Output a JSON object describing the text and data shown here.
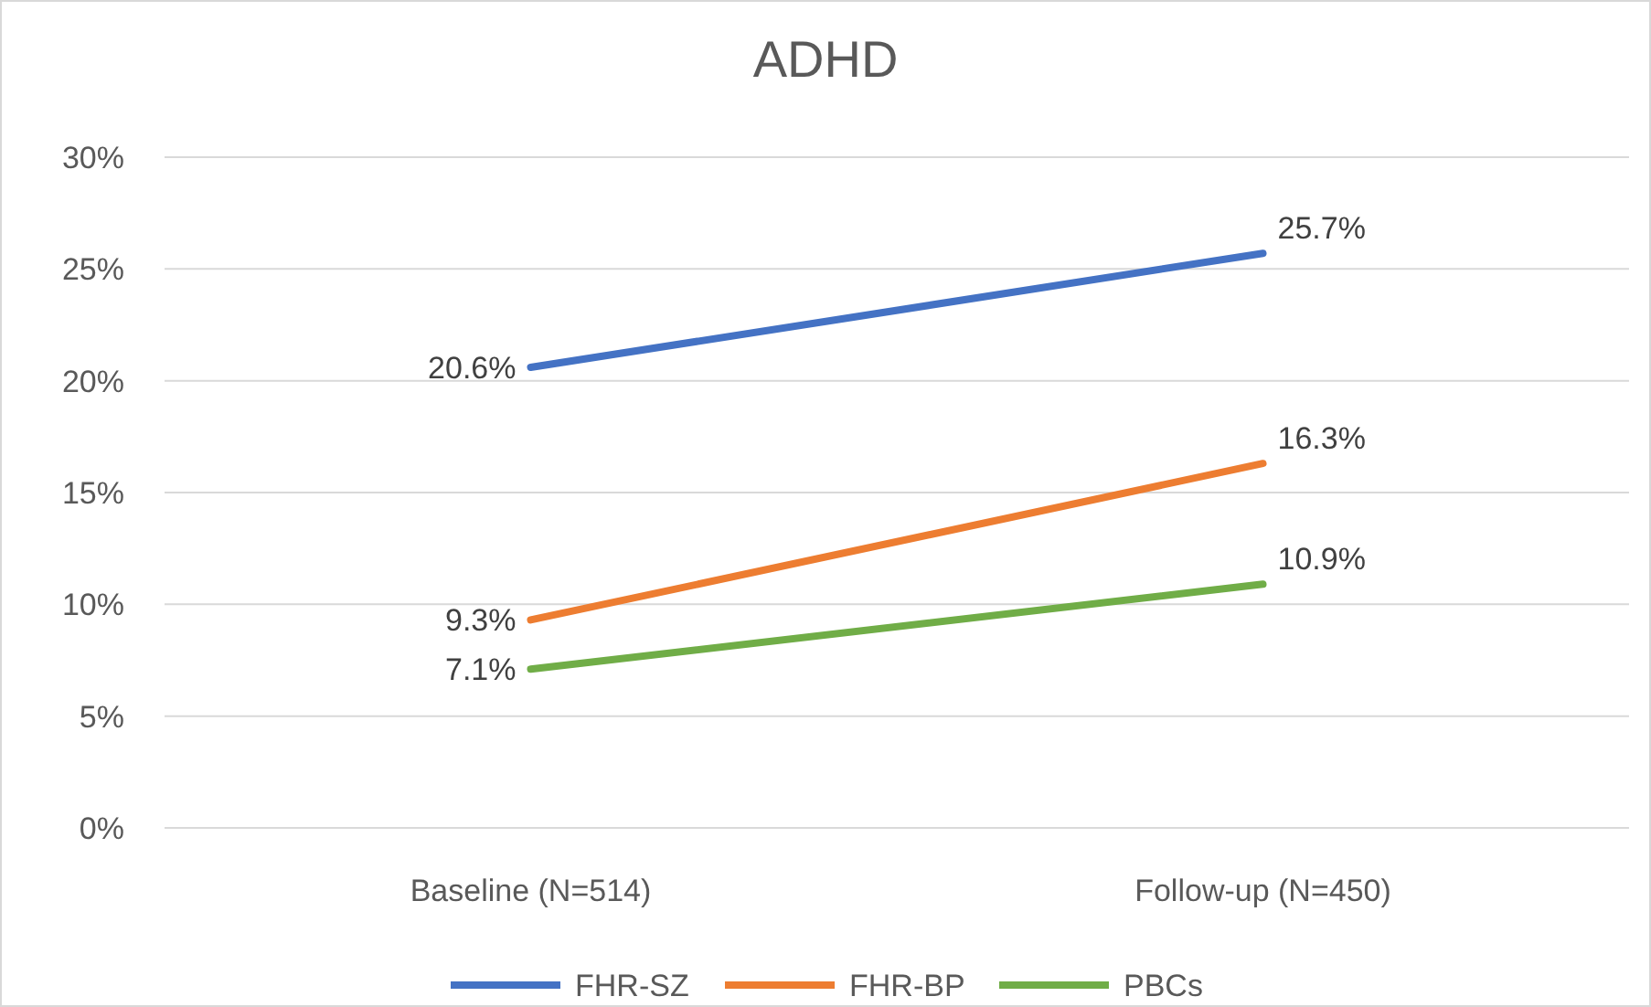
{
  "chart_data": {
    "type": "line",
    "title": "ADHD",
    "categories": [
      "Baseline (N=514)",
      "Follow-up (N=450)"
    ],
    "series": [
      {
        "name": "FHR-SZ",
        "color": "#4472c4",
        "values": [
          20.6,
          25.7
        ],
        "value_labels": [
          "20.6%",
          "25.7%"
        ]
      },
      {
        "name": "FHR-BP",
        "color": "#ed7d31",
        "values": [
          9.3,
          16.3
        ],
        "value_labels": [
          "9.3%",
          "16.3%"
        ]
      },
      {
        "name": "PBCs",
        "color": "#70ad47",
        "values": [
          7.1,
          10.9
        ],
        "value_labels": [
          "7.1%",
          "10.9%"
        ]
      }
    ],
    "ylim": [
      0,
      30
    ],
    "yticks": [
      {
        "value": 0,
        "label": "0%"
      },
      {
        "value": 5,
        "label": "5%"
      },
      {
        "value": 10,
        "label": "10%"
      },
      {
        "value": 15,
        "label": "15%"
      },
      {
        "value": 20,
        "label": "20%"
      },
      {
        "value": 25,
        "label": "25%"
      },
      {
        "value": 30,
        "label": "30%"
      }
    ],
    "grid": "y",
    "legend": "bottom",
    "marker": "none",
    "line_style": "solid"
  }
}
